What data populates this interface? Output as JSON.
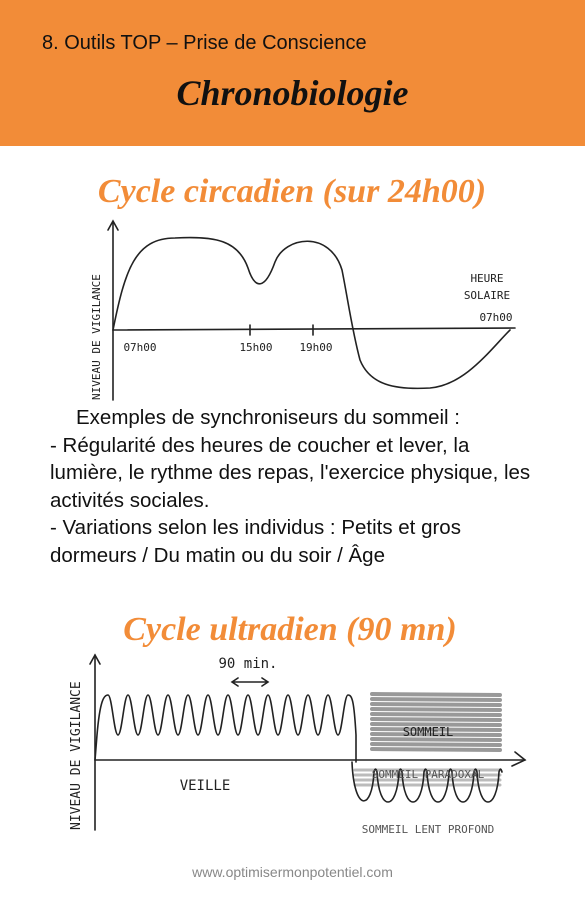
{
  "header": {
    "subtitle": "8. Outils TOP – Prise de Conscience",
    "title": "Chronobiologie"
  },
  "circadian": {
    "title": "Cycle circadien (sur 24h00)",
    "y_label": "NIVEAU DE VIGILANCE",
    "x_label_lines": [
      "HEURE",
      "SOLAIRE"
    ],
    "times": [
      "07h00",
      "15h00",
      "19h00",
      "07h00"
    ]
  },
  "synchronisers": {
    "heading": "Exemples de synchroniseurs du sommeil :",
    "items": [
      "- Régularité des heures de coucher et lever, la lumière, le rythme des repas, l'exercice physique, les activités sociales.",
      "- Variations selon les individus : Petits et gros dormeurs / Du matin ou du soir / Âge"
    ]
  },
  "ultradian": {
    "title": "Cycle ultradien (90 mn)",
    "y_label": "NIVEAU DE VIGILANCE",
    "period_label": "90 min.",
    "wake_label": "VEILLE",
    "sleep_label": "SOMMEIL",
    "paradoxal_label": "SOMMEIL PARADOXAL",
    "deep_label": "SOMMEIL LENT PROFOND"
  },
  "footer": {
    "url": "www.optimisermonpotentiel.com"
  }
}
